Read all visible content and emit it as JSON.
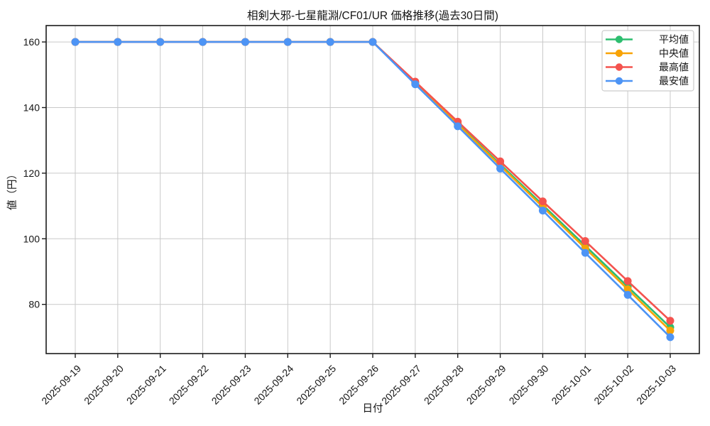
{
  "chart_data": {
    "type": "line",
    "title": "相剣大邪-七星龍淵/CF01/UR 価格推移(過去30日間)",
    "xlabel": "日付",
    "ylabel": "値（円）",
    "x": [
      "2025-09-19",
      "2025-09-20",
      "2025-09-21",
      "2025-09-22",
      "2025-09-23",
      "2025-09-24",
      "2025-09-25",
      "2025-09-26",
      "2025-09-27",
      "2025-09-28",
      "2025-09-29",
      "2025-09-30",
      "2025-10-01",
      "2025-10-02",
      "2025-10-03"
    ],
    "yticks": [
      80,
      100,
      120,
      140,
      160
    ],
    "ylim": [
      65,
      165
    ],
    "grid": true,
    "legend_position": "upper right",
    "series": [
      {
        "key": "average",
        "name": "平均値",
        "color": "#2dbe6f",
        "values": [
          160,
          160,
          160,
          160,
          160,
          160,
          160,
          160,
          147.6,
          135.1,
          122.7,
          110.3,
          97.9,
          85.4,
          73
        ]
      },
      {
        "key": "median",
        "name": "中央値",
        "color": "#f8a306",
        "values": [
          160,
          160,
          160,
          160,
          160,
          160,
          160,
          160,
          147.4,
          134.9,
          122.3,
          109.7,
          97.1,
          84.6,
          72
        ]
      },
      {
        "key": "highest",
        "name": "最高値",
        "color": "#f4534e",
        "values": [
          160,
          160,
          160,
          160,
          160,
          160,
          160,
          160,
          147.9,
          135.7,
          123.6,
          111.4,
          99.3,
          87.1,
          75
        ]
      },
      {
        "key": "lowest",
        "name": "最安値",
        "color": "#4d94f5",
        "values": [
          160,
          160,
          160,
          160,
          160,
          160,
          160,
          160,
          147.1,
          134.3,
          121.4,
          108.6,
          95.7,
          82.9,
          70
        ]
      }
    ],
    "colors": {
      "grid": "#c9c9c9",
      "spine": "#1b1b1b",
      "legend_border": "#cccccc",
      "background": "#ffffff"
    }
  }
}
